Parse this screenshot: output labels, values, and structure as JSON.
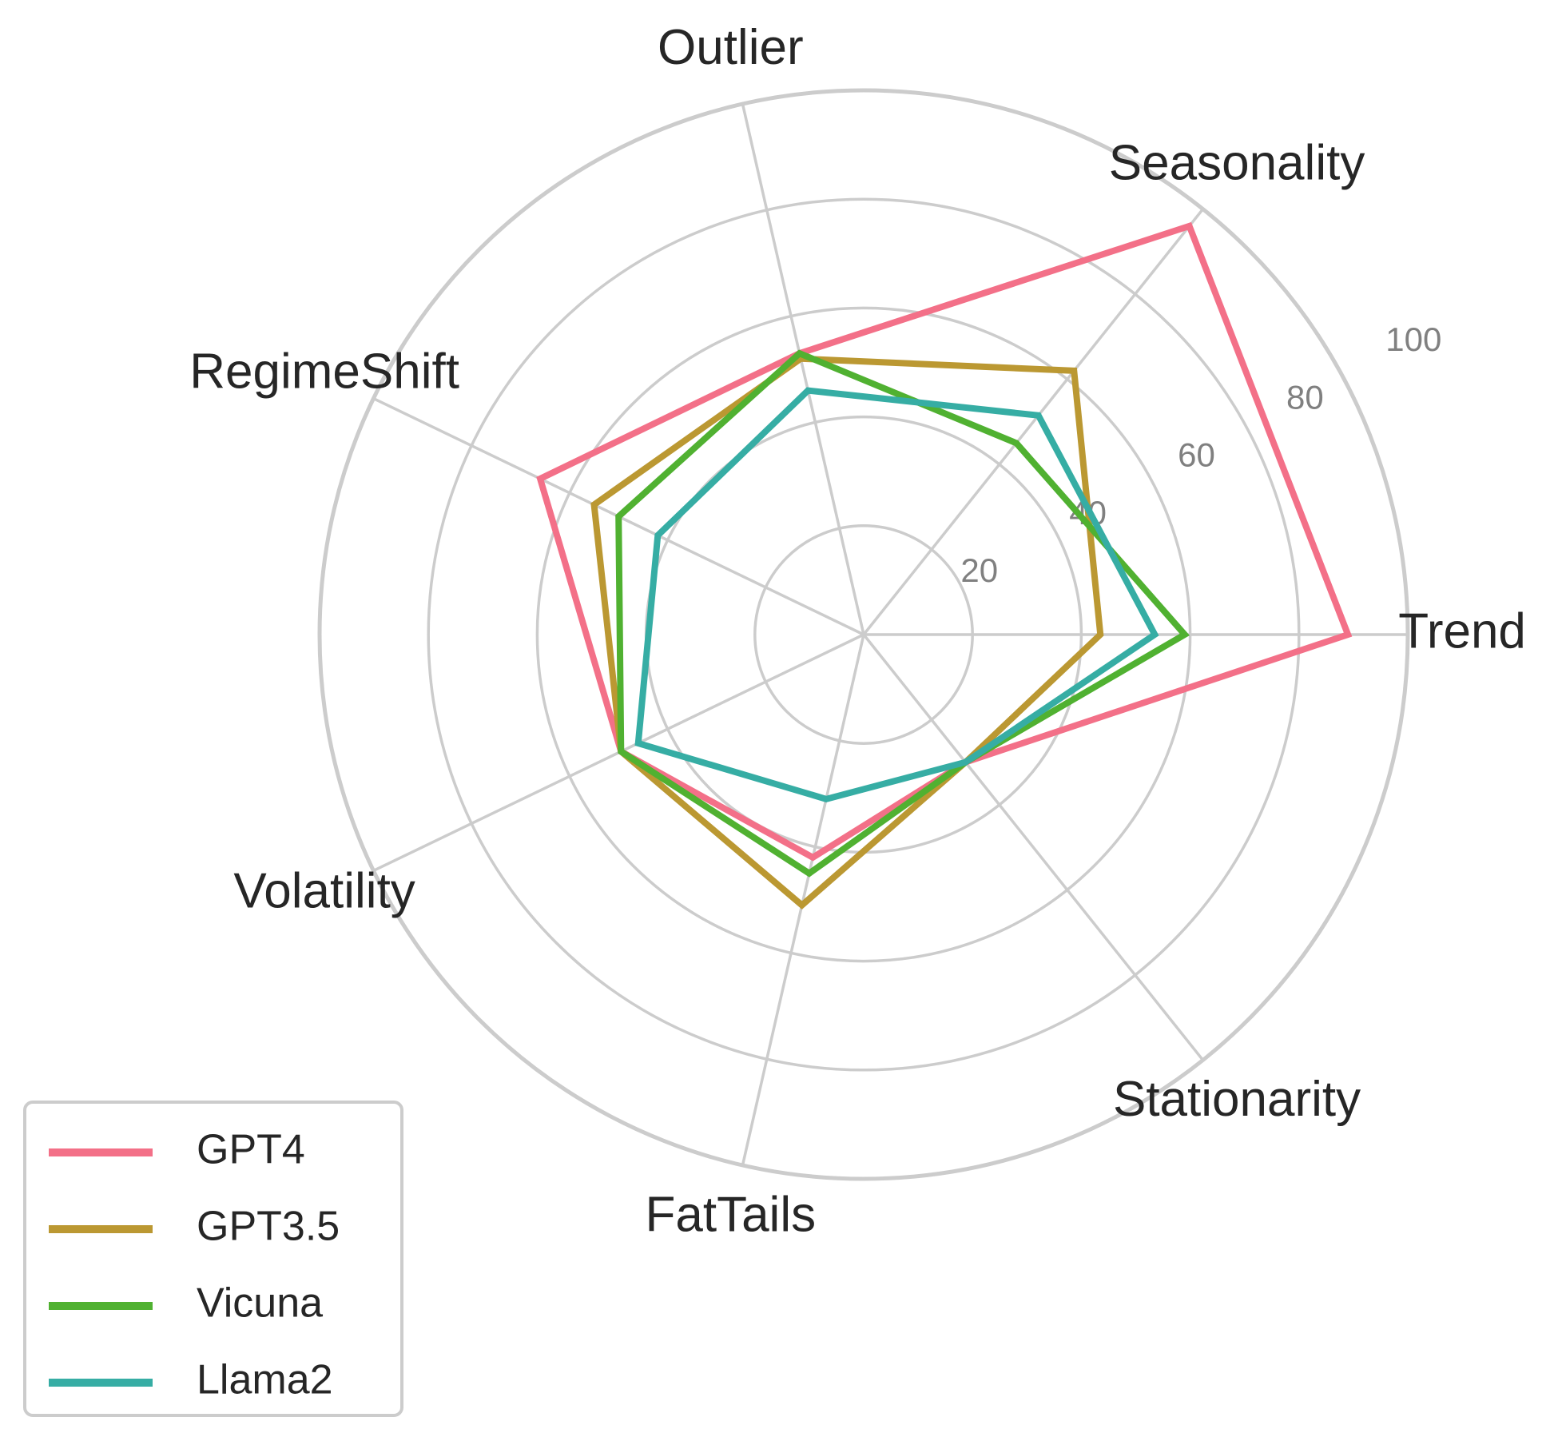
{
  "chart_data": {
    "type": "radar",
    "categories": [
      "Trend",
      "Seasonality",
      "Outlier",
      "RegimeShift",
      "Volatility",
      "FatTails",
      "Stationarity"
    ],
    "series": [
      {
        "name": "GPT4",
        "color": "#f37088",
        "values": [
          89,
          96,
          53,
          66,
          49.5,
          42,
          30
        ]
      },
      {
        "name": "GPT3.5",
        "color": "#bb9832",
        "values": [
          43.5,
          62,
          52,
          55,
          49.5,
          51,
          30
        ]
      },
      {
        "name": "Vicuna",
        "color": "#50b131",
        "values": [
          59,
          45,
          53,
          50,
          49.5,
          45,
          30
        ]
      },
      {
        "name": "Llama2",
        "color": "#36ada4",
        "values": [
          53.5,
          51.5,
          46,
          42,
          46,
          31,
          30
        ]
      }
    ],
    "ylim": [
      0,
      100
    ],
    "yticks": [
      20,
      40,
      60,
      80,
      100
    ],
    "grid": true,
    "legend": "lower left"
  }
}
